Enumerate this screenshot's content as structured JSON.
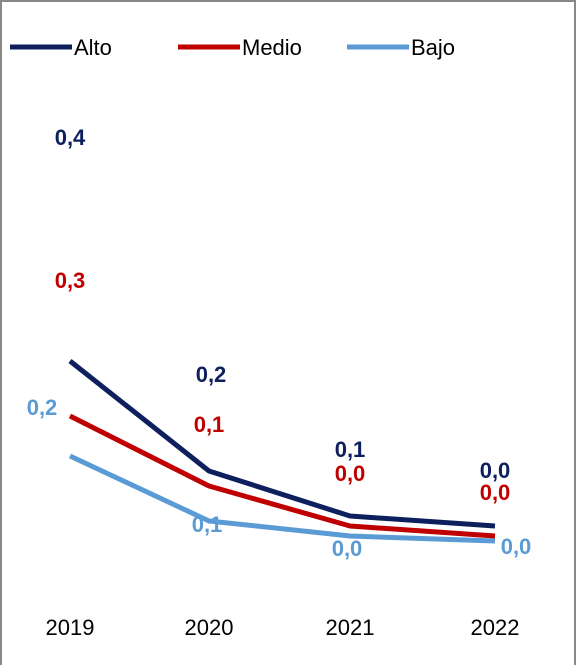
{
  "chart_data": {
    "type": "line",
    "title": "",
    "xlabel": "",
    "ylabel": "",
    "categories": [
      "2019",
      "2020",
      "2021",
      "2022"
    ],
    "ylim": [
      0,
      0.5
    ],
    "grid": false,
    "legend_position": "top-left",
    "series": [
      {
        "name": "Alto",
        "color": "#0d1f5c",
        "values": [
          0.38,
          0.16,
          0.07,
          0.05
        ],
        "labels": [
          "0,4",
          "0,2",
          "0,1",
          "0,0"
        ]
      },
      {
        "name": "Medio",
        "color": "#c00000",
        "values": [
          0.27,
          0.13,
          0.05,
          0.03
        ],
        "labels": [
          "0,3",
          "0,1",
          "0,0",
          "0,0"
        ]
      },
      {
        "name": "Bajo",
        "color": "#5b9bd5",
        "values": [
          0.19,
          0.06,
          0.03,
          0.02
        ],
        "labels": [
          "0,2",
          "0,1",
          "0,0",
          "0,0"
        ]
      }
    ]
  }
}
